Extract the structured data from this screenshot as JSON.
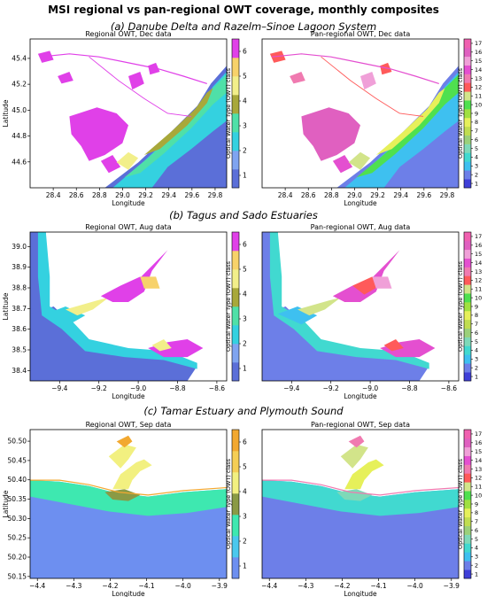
{
  "figure": {
    "title": "MSI regional vs pan-regional OWT coverage, monthly composites",
    "colorbar_label": "Optical Water Type (OWT) class",
    "xlabel": "Longitude",
    "ylabel": "Latitude"
  },
  "palettes": {
    "regional": [
      "#5b6fd8",
      "#7fa4f0",
      "#34d1e0",
      "#4fe0a8",
      "#a8a83a",
      "#f2ef8a",
      "#f7d26a",
      "#e040e8"
    ],
    "regional_tamar": [
      "#6d8ff0",
      "#4ac8ee",
      "#3ee8b0",
      "#8a9a45",
      "#f2f080",
      "#f5ce55",
      "#f2a830"
    ],
    "pan": [
      "#3f3fd8",
      "#6d7fe8",
      "#3ec0f0",
      "#41d9d0",
      "#7ed9b8",
      "#9bd07a",
      "#c0dd50",
      "#e6f05a",
      "#a0e040",
      "#4fe04f",
      "#d2e48a",
      "#ff5a5a",
      "#f07ab0",
      "#e44fd0",
      "#f0a0d8",
      "#e060c0",
      "#f060b0"
    ]
  },
  "chart_data": [
    {
      "id": "a1",
      "section_title": "(a) Danube Delta and Razelm–Sinoe Lagoon System",
      "panel_title": "Regional OWT, Dec data",
      "type": "heatmap",
      "xticks": [
        "28.4",
        "28.6",
        "28.8",
        "29.0",
        "29.2",
        "29.4",
        "29.6",
        "29.8"
      ],
      "yticks": [
        "45.4",
        "45.2",
        "45.0",
        "44.8",
        "44.6"
      ],
      "xlim": [
        28.2,
        29.9
      ],
      "ylim": [
        44.4,
        45.55
      ],
      "cbar_ticks": [
        "1",
        "2",
        "3",
        "4",
        "5",
        "6"
      ],
      "cbar_range": [
        0.5,
        6.5
      ],
      "palette": "regional"
    },
    {
      "id": "a2",
      "panel_title": "Pan-regional OWT, Dec data",
      "type": "heatmap",
      "xticks": [
        "28.4",
        "28.6",
        "28.8",
        "29.0",
        "29.2",
        "29.4",
        "29.6",
        "29.8"
      ],
      "yticks": [],
      "xlim": [
        28.2,
        29.9
      ],
      "ylim": [
        44.4,
        45.55
      ],
      "cbar_ticks": [
        "1",
        "2",
        "3",
        "4",
        "5",
        "6",
        "7",
        "8",
        "9",
        "10",
        "11",
        "12",
        "13",
        "14",
        "15",
        "16",
        "17"
      ],
      "cbar_range": [
        0.5,
        17.5
      ],
      "palette": "pan"
    },
    {
      "id": "b1",
      "section_title": "(b) Tagus and Sado Estuaries",
      "panel_title": "Regional OWT, Aug data",
      "type": "heatmap",
      "xticks": [
        "−9.4",
        "−9.2",
        "−9.0",
        "−8.8",
        "−8.6"
      ],
      "yticks": [
        "39.0",
        "38.9",
        "38.8",
        "38.7",
        "38.6",
        "38.5",
        "38.4"
      ],
      "xlim": [
        -9.55,
        -8.55
      ],
      "ylim": [
        38.35,
        39.07
      ],
      "cbar_ticks": [
        "1",
        "2",
        "3",
        "4",
        "5",
        "6"
      ],
      "cbar_range": [
        0.5,
        6.5
      ],
      "palette": "regional"
    },
    {
      "id": "b2",
      "panel_title": "Pan-regional OWT, Aug data",
      "type": "heatmap",
      "xticks": [
        "−9.4",
        "−9.2",
        "−9.0",
        "−8.8",
        "−8.6"
      ],
      "yticks": [],
      "xlim": [
        -9.55,
        -8.55
      ],
      "ylim": [
        38.35,
        39.07
      ],
      "cbar_ticks": [
        "1",
        "2",
        "3",
        "4",
        "5",
        "6",
        "7",
        "8",
        "9",
        "10",
        "11",
        "12",
        "13",
        "14",
        "15",
        "16",
        "17"
      ],
      "cbar_range": [
        0.5,
        17.5
      ],
      "palette": "pan"
    },
    {
      "id": "c1",
      "section_title": "(c) Tamar Estuary and Plymouth Sound",
      "panel_title": "Regional OWT, Sep data",
      "type": "heatmap",
      "xticks": [
        "−4.4",
        "−4.3",
        "−4.2",
        "−4.1",
        "−4.0",
        "−3.9"
      ],
      "yticks": [
        "50.50",
        "50.45",
        "50.40",
        "50.35",
        "50.30",
        "50.25",
        "50.20",
        "50.15"
      ],
      "xlim": [
        -4.42,
        -3.88
      ],
      "ylim": [
        50.145,
        50.53
      ],
      "cbar_ticks": [
        "1",
        "2",
        "3",
        "4",
        "5",
        "6"
      ],
      "cbar_range": [
        0.5,
        6.5
      ],
      "palette": "regional_tamar"
    },
    {
      "id": "c2",
      "panel_title": "Pan-regional OWT, Sep data",
      "type": "heatmap",
      "xticks": [
        "−4.4",
        "−4.3",
        "−4.2",
        "−4.1",
        "−4.0",
        "−3.9"
      ],
      "yticks": [],
      "xlim": [
        -4.42,
        -3.88
      ],
      "ylim": [
        50.145,
        50.53
      ],
      "cbar_ticks": [
        "1",
        "2",
        "3",
        "4",
        "5",
        "6",
        "7",
        "8",
        "9",
        "10",
        "11",
        "12",
        "13",
        "14",
        "15",
        "16",
        "17"
      ],
      "cbar_range": [
        0.5,
        17.5
      ],
      "palette": "pan"
    }
  ]
}
